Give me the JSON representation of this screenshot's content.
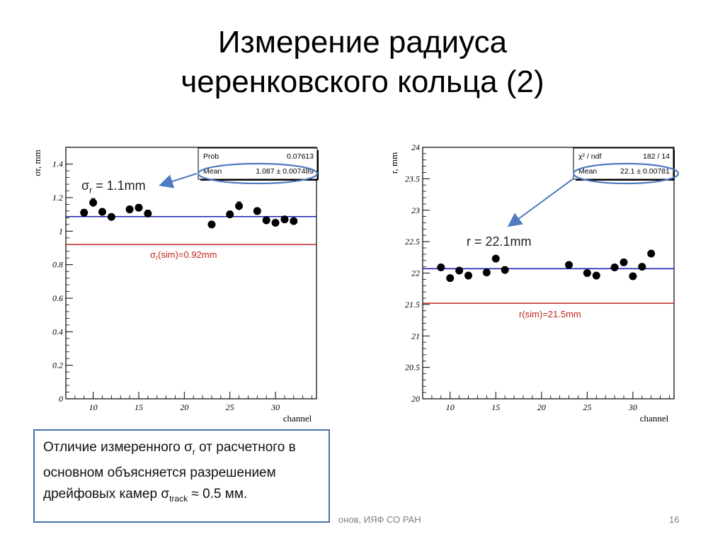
{
  "slide": {
    "title_line1": "Измерение радиуса",
    "title_line2": "черенковского кольца (2)",
    "footer": "онов, ИЯФ СО РАН",
    "page_number": "16",
    "note_part1": "Отличие измеренного σ",
    "note_sub1": "r",
    "note_part2": " от расчетного в основном объясняется разрешением дрейфовых камер σ",
    "note_sub2": "track",
    "note_part3": " ≈ 0.5 мм."
  },
  "colors": {
    "fit_line": "#1f22b5",
    "sim_line": "#c0241f",
    "ellipse": "#4f7bc0",
    "arrow": "#4f7bc0",
    "marker": "#000000"
  },
  "chart_data": [
    {
      "type": "scatter",
      "ylabel": "σr, mm",
      "xlabel": "channel",
      "xlim": [
        7,
        34.5
      ],
      "ylim": [
        0,
        1.5
      ],
      "x_ticks": [
        10,
        15,
        20,
        25,
        30
      ],
      "y_ticks": [
        0,
        0.2,
        0.4,
        0.6,
        0.8,
        1,
        1.2,
        1.4
      ],
      "y_tick_labels": [
        "0",
        "0.2",
        "0.4",
        "0.6",
        "0.8",
        "1",
        "1.2",
        "1.4"
      ],
      "points": [
        {
          "x": 9,
          "y": 1.11,
          "err": 0.02
        },
        {
          "x": 10,
          "y": 1.17,
          "err": 0.025
        },
        {
          "x": 11,
          "y": 1.115,
          "err": 0.02
        },
        {
          "x": 12,
          "y": 1.085,
          "err": 0.015
        },
        {
          "x": 14,
          "y": 1.13,
          "err": 0.02
        },
        {
          "x": 15,
          "y": 1.14,
          "err": 0.02
        },
        {
          "x": 16,
          "y": 1.105,
          "err": 0.02
        },
        {
          "x": 23,
          "y": 1.04,
          "err": 0.015
        },
        {
          "x": 25,
          "y": 1.1,
          "err": 0.02
        },
        {
          "x": 26,
          "y": 1.15,
          "err": 0.025
        },
        {
          "x": 28,
          "y": 1.12,
          "err": 0.015
        },
        {
          "x": 29,
          "y": 1.065,
          "err": 0.015
        },
        {
          "x": 30,
          "y": 1.05,
          "err": 0.015
        },
        {
          "x": 31,
          "y": 1.07,
          "err": 0.015
        },
        {
          "x": 32,
          "y": 1.06,
          "err": 0.015
        }
      ],
      "fit_line_y": 1.087,
      "sim_line_y": 0.92,
      "sim_label_base": "σ",
      "sim_label_sub": "r",
      "sim_label_rest": "(sim)=0.92mm",
      "stats": [
        {
          "name": "Prob",
          "value": "0.07613"
        },
        {
          "name": "Mean",
          "value": "1.087 ± 0.007489"
        }
      ],
      "annotation_base": "σ",
      "annotation_sub": "r",
      "annotation_rest": " = 1.1mm"
    },
    {
      "type": "scatter",
      "ylabel": "r, mm",
      "xlabel": "channel",
      "xlim": [
        7,
        34.5
      ],
      "ylim": [
        20,
        24
      ],
      "x_ticks": [
        10,
        15,
        20,
        25,
        30
      ],
      "y_ticks": [
        20,
        20.5,
        21,
        21.5,
        22,
        22.5,
        23,
        23.5,
        24
      ],
      "y_tick_labels": [
        "20",
        "20.5",
        "21",
        "21.5",
        "22",
        "22.5",
        "23",
        "23.5",
        "24"
      ],
      "points": [
        {
          "x": 9,
          "y": 22.09,
          "err": 0.01
        },
        {
          "x": 10,
          "y": 21.92,
          "err": 0.01
        },
        {
          "x": 11,
          "y": 22.04,
          "err": 0.01
        },
        {
          "x": 12,
          "y": 21.96,
          "err": 0.01
        },
        {
          "x": 14,
          "y": 22.01,
          "err": 0.01
        },
        {
          "x": 15,
          "y": 22.23,
          "err": 0.01
        },
        {
          "x": 16,
          "y": 22.05,
          "err": 0.01
        },
        {
          "x": 23,
          "y": 22.13,
          "err": 0.01
        },
        {
          "x": 25,
          "y": 22.0,
          "err": 0.01
        },
        {
          "x": 26,
          "y": 21.96,
          "err": 0.01
        },
        {
          "x": 28,
          "y": 22.09,
          "err": 0.01
        },
        {
          "x": 29,
          "y": 22.17,
          "err": 0.01
        },
        {
          "x": 30,
          "y": 21.95,
          "err": 0.01
        },
        {
          "x": 31,
          "y": 22.1,
          "err": 0.01
        },
        {
          "x": 32,
          "y": 22.31,
          "err": 0.01
        }
      ],
      "fit_line_y": 22.07,
      "sim_line_y": 21.52,
      "sim_label": "r(sim)=21.5mm",
      "stats": [
        {
          "name": "χ² / ndf",
          "value": "182 / 14"
        },
        {
          "name": "Mean",
          "value": "22.1 ± 0.00781"
        }
      ],
      "annotation": "r = 22.1mm"
    }
  ]
}
